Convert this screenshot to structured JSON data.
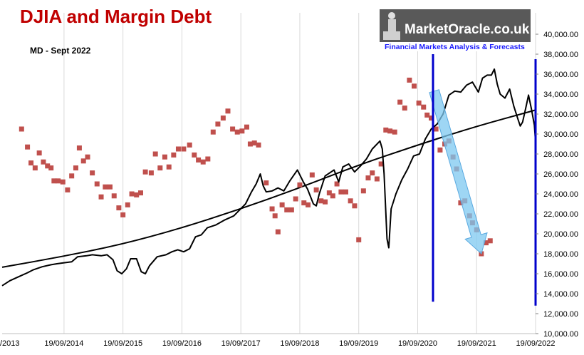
{
  "chart_data": {
    "type": "line",
    "title": "DJIA and Margin Debt",
    "subtitle": "MD - Sept  2022",
    "xlabel": "",
    "ylabel": "",
    "ylim": [
      10000,
      40000
    ],
    "y_ticks": [
      "10,000.00",
      "12,000.00",
      "14,000.00",
      "16,000.00",
      "18,000.00",
      "20,000.00",
      "22,000.00",
      "24,000.00",
      "26,000.00",
      "28,000.00",
      "30,000.00",
      "32,000.00",
      "34,000.00",
      "36,000.00",
      "38,000.00",
      "40,000.00"
    ],
    "x_ticks": [
      "/2013",
      "19/09/2014",
      "19/09/2015",
      "19/09/2016",
      "19/09/2017",
      "19/09/2018",
      "19/09/2019",
      "19/09/2020",
      "19/09/2021",
      "19/09/2022"
    ],
    "x_range": [
      2013.67,
      2022.72
    ],
    "grid": "vertical",
    "series": [
      {
        "kind": "line",
        "color": "#000000",
        "points": [
          [
            2013.67,
            14800
          ],
          [
            2013.8,
            15300
          ],
          [
            2013.95,
            15700
          ],
          [
            2014.1,
            16100
          ],
          [
            2014.2,
            16400
          ],
          [
            2014.35,
            16700
          ],
          [
            2014.5,
            16900
          ],
          [
            2014.6,
            17000
          ],
          [
            2014.72,
            17100
          ],
          [
            2014.85,
            17200
          ],
          [
            2014.95,
            17700
          ],
          [
            2015.1,
            17800
          ],
          [
            2015.2,
            17900
          ],
          [
            2015.35,
            17800
          ],
          [
            2015.45,
            17900
          ],
          [
            2015.55,
            17400
          ],
          [
            2015.62,
            16300
          ],
          [
            2015.7,
            16000
          ],
          [
            2015.78,
            16500
          ],
          [
            2015.85,
            17500
          ],
          [
            2015.95,
            17500
          ],
          [
            2016.03,
            16200
          ],
          [
            2016.1,
            16000
          ],
          [
            2016.17,
            16800
          ],
          [
            2016.3,
            17700
          ],
          [
            2016.45,
            17900
          ],
          [
            2016.55,
            18200
          ],
          [
            2016.65,
            18400
          ],
          [
            2016.75,
            18200
          ],
          [
            2016.85,
            18500
          ],
          [
            2016.95,
            19700
          ],
          [
            2017.05,
            19900
          ],
          [
            2017.15,
            20600
          ],
          [
            2017.3,
            20900
          ],
          [
            2017.45,
            21400
          ],
          [
            2017.6,
            21800
          ],
          [
            2017.7,
            22400
          ],
          [
            2017.8,
            23000
          ],
          [
            2017.9,
            24200
          ],
          [
            2017.98,
            25000
          ],
          [
            2018.05,
            26000
          ],
          [
            2018.1,
            24800
          ],
          [
            2018.15,
            24200
          ],
          [
            2018.25,
            24300
          ],
          [
            2018.35,
            24600
          ],
          [
            2018.45,
            24300
          ],
          [
            2018.55,
            25300
          ],
          [
            2018.68,
            26400
          ],
          [
            2018.78,
            25200
          ],
          [
            2018.85,
            24500
          ],
          [
            2018.95,
            23000
          ],
          [
            2019.0,
            22800
          ],
          [
            2019.05,
            24000
          ],
          [
            2019.15,
            25800
          ],
          [
            2019.3,
            26400
          ],
          [
            2019.38,
            25200
          ],
          [
            2019.45,
            26700
          ],
          [
            2019.55,
            27000
          ],
          [
            2019.65,
            26200
          ],
          [
            2019.75,
            26800
          ],
          [
            2019.85,
            27500
          ],
          [
            2019.95,
            28500
          ],
          [
            2020.08,
            29300
          ],
          [
            2020.12,
            28500
          ],
          [
            2020.15,
            26000
          ],
          [
            2020.2,
            19500
          ],
          [
            2020.23,
            18600
          ],
          [
            2020.27,
            22500
          ],
          [
            2020.35,
            24000
          ],
          [
            2020.45,
            25400
          ],
          [
            2020.55,
            26500
          ],
          [
            2020.65,
            27800
          ],
          [
            2020.75,
            28000
          ],
          [
            2020.85,
            29500
          ],
          [
            2020.95,
            30500
          ],
          [
            2021.05,
            31000
          ],
          [
            2021.15,
            32000
          ],
          [
            2021.25,
            33900
          ],
          [
            2021.35,
            34300
          ],
          [
            2021.45,
            34200
          ],
          [
            2021.55,
            34900
          ],
          [
            2021.65,
            35200
          ],
          [
            2021.75,
            34200
          ],
          [
            2021.82,
            35600
          ],
          [
            2021.9,
            35900
          ],
          [
            2021.97,
            35900
          ],
          [
            2022.02,
            36500
          ],
          [
            2022.07,
            35000
          ],
          [
            2022.12,
            34000
          ],
          [
            2022.2,
            33600
          ],
          [
            2022.28,
            34500
          ],
          [
            2022.35,
            32800
          ],
          [
            2022.42,
            31500
          ],
          [
            2022.46,
            30800
          ],
          [
            2022.5,
            31200
          ],
          [
            2022.55,
            32500
          ],
          [
            2022.6,
            33900
          ],
          [
            2022.65,
            32500
          ],
          [
            2022.7,
            30900
          ],
          [
            2022.72,
            29200
          ]
        ]
      },
      {
        "kind": "trend",
        "color": "#000000",
        "points": [
          [
            2013.67,
            16650
          ],
          [
            2014.67,
            17700
          ],
          [
            2015.67,
            18900
          ],
          [
            2016.67,
            20500
          ],
          [
            2017.67,
            22400
          ],
          [
            2018.67,
            24500
          ],
          [
            2019.67,
            26800
          ],
          [
            2020.67,
            28800
          ],
          [
            2021.67,
            30700
          ],
          [
            2022.72,
            32400
          ]
        ]
      },
      {
        "kind": "scatter",
        "color": "#c0504d",
        "points": [
          [
            2014.0,
            30500
          ],
          [
            2014.1,
            28700
          ],
          [
            2014.16,
            27100
          ],
          [
            2014.23,
            26600
          ],
          [
            2014.3,
            28100
          ],
          [
            2014.37,
            27200
          ],
          [
            2014.44,
            26800
          ],
          [
            2014.5,
            26600
          ],
          [
            2014.55,
            25300
          ],
          [
            2014.62,
            25300
          ],
          [
            2014.7,
            25200
          ],
          [
            2014.78,
            24400
          ],
          [
            2014.85,
            25800
          ],
          [
            2014.92,
            26600
          ],
          [
            2014.98,
            28600
          ],
          [
            2015.05,
            27300
          ],
          [
            2015.12,
            27700
          ],
          [
            2015.2,
            26100
          ],
          [
            2015.28,
            25000
          ],
          [
            2015.35,
            23700
          ],
          [
            2015.42,
            24700
          ],
          [
            2015.5,
            24700
          ],
          [
            2015.57,
            23800
          ],
          [
            2015.65,
            22600
          ],
          [
            2015.72,
            21900
          ],
          [
            2015.8,
            22900
          ],
          [
            2015.87,
            24000
          ],
          [
            2015.95,
            23900
          ],
          [
            2016.02,
            24100
          ],
          [
            2016.1,
            26200
          ],
          [
            2016.2,
            26100
          ],
          [
            2016.27,
            28000
          ],
          [
            2016.35,
            26600
          ],
          [
            2016.43,
            27700
          ],
          [
            2016.5,
            26700
          ],
          [
            2016.58,
            27900
          ],
          [
            2016.66,
            28500
          ],
          [
            2016.75,
            28500
          ],
          [
            2016.85,
            28900
          ],
          [
            2016.93,
            27900
          ],
          [
            2017.0,
            27400
          ],
          [
            2017.08,
            27200
          ],
          [
            2017.16,
            27500
          ],
          [
            2017.25,
            30200
          ],
          [
            2017.33,
            31000
          ],
          [
            2017.42,
            31600
          ],
          [
            2017.5,
            32300
          ],
          [
            2017.58,
            30500
          ],
          [
            2017.66,
            30200
          ],
          [
            2017.74,
            30300
          ],
          [
            2017.82,
            30700
          ],
          [
            2017.88,
            29000
          ],
          [
            2017.95,
            29100
          ],
          [
            2018.02,
            28900
          ],
          [
            2018.15,
            25100
          ],
          [
            2018.25,
            22500
          ],
          [
            2018.3,
            21800
          ],
          [
            2018.35,
            20200
          ],
          [
            2018.42,
            22900
          ],
          [
            2018.5,
            22400
          ],
          [
            2018.58,
            22400
          ],
          [
            2018.65,
            23500
          ],
          [
            2018.72,
            24900
          ],
          [
            2018.79,
            23100
          ],
          [
            2018.86,
            22900
          ],
          [
            2018.93,
            25900
          ],
          [
            2019.0,
            24400
          ],
          [
            2019.08,
            23300
          ],
          [
            2019.15,
            23200
          ],
          [
            2019.22,
            24100
          ],
          [
            2019.28,
            23800
          ],
          [
            2019.35,
            25000
          ],
          [
            2019.42,
            24200
          ],
          [
            2019.5,
            24200
          ],
          [
            2019.58,
            23300
          ],
          [
            2019.65,
            22800
          ],
          [
            2019.72,
            19400
          ],
          [
            2019.8,
            24300
          ],
          [
            2019.88,
            25600
          ],
          [
            2019.95,
            26100
          ],
          [
            2020.03,
            25500
          ],
          [
            2020.1,
            27000
          ],
          [
            2020.18,
            30400
          ],
          [
            2020.25,
            30300
          ],
          [
            2020.33,
            30200
          ],
          [
            2020.42,
            33200
          ],
          [
            2020.5,
            32600
          ],
          [
            2020.58,
            35400
          ],
          [
            2020.66,
            34800
          ],
          [
            2020.74,
            33100
          ],
          [
            2020.82,
            32700
          ],
          [
            2020.88,
            31900
          ],
          [
            2020.95,
            31600
          ],
          [
            2021.03,
            30500
          ],
          [
            2021.1,
            28400
          ],
          [
            2021.18,
            29000
          ],
          [
            2021.25,
            29300
          ],
          [
            2021.32,
            27700
          ],
          [
            2021.38,
            26500
          ],
          [
            2021.45,
            23100
          ],
          [
            2021.52,
            23300
          ],
          [
            2021.6,
            21800
          ],
          [
            2021.65,
            21100
          ],
          [
            2021.72,
            20400
          ],
          [
            2021.8,
            18000
          ],
          [
            2021.88,
            19100
          ],
          [
            2021.95,
            19300
          ]
        ]
      }
    ],
    "verticals": [
      {
        "color": "#0000cc",
        "x": 2020.98,
        "y_top": 38000,
        "y_bottom": 13200
      },
      {
        "color": "#0000cc",
        "x": 2022.72,
        "y_top": 37500,
        "y_bottom": 12800
      }
    ],
    "arrow": {
      "color": "#7ec8f0",
      "from": [
        2021.0,
        34300
      ],
      "to": [
        2021.8,
        18000
      ]
    },
    "logo": {
      "name": "MarketOracle.co.uk",
      "tagline": "Financial Markets Analysis & Forecasts"
    }
  }
}
